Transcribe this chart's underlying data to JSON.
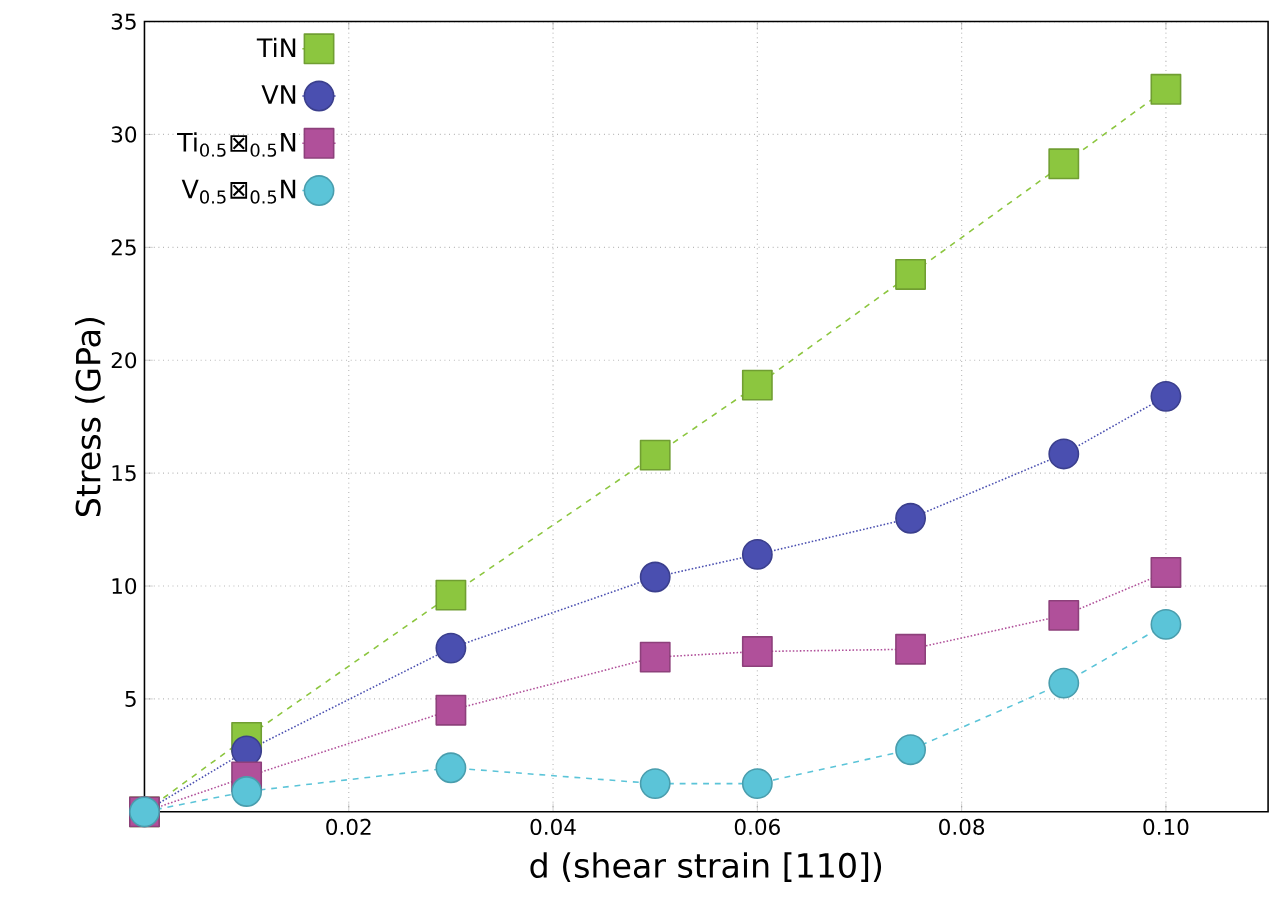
{
  "chart_data": {
    "type": "line",
    "xlabel": "d (shear strain [110])",
    "ylabel": "Stress (GPa)",
    "x": [
      0,
      0.01,
      0.03,
      0.05,
      0.06,
      0.075,
      0.09,
      0.1
    ],
    "series": [
      {
        "name": "TiN",
        "color": "#8cc63f",
        "marker": "square",
        "line_style": "dashed",
        "values": [
          0,
          3.3,
          9.6,
          15.8,
          18.9,
          23.8,
          28.7,
          32.0
        ]
      },
      {
        "name": "VN",
        "color": "#4a4fb0",
        "marker": "circle",
        "line_style": "dotted",
        "values": [
          0,
          2.7,
          7.25,
          10.4,
          11.4,
          13.0,
          15.85,
          18.4
        ]
      },
      {
        "name": "Ti$_{0.5}$⊠$_{0.5}$N",
        "color": "#b0509a",
        "marker": "square",
        "line_style": "dotted",
        "values": [
          0,
          1.55,
          4.5,
          6.85,
          7.1,
          7.2,
          8.7,
          10.6
        ]
      },
      {
        "name": "V$_{0.5}$⊠$_{0.5}$N",
        "color": "#5bc4d8",
        "marker": "circle",
        "line_style": "dashed",
        "values": [
          0,
          0.9,
          1.95,
          1.25,
          1.25,
          2.75,
          5.7,
          8.3
        ]
      }
    ],
    "xlim": [
      0,
      0.11
    ],
    "ylim": [
      0,
      35
    ],
    "xticks": [
      0.02,
      0.04,
      0.06,
      0.08,
      {
        "value": 0.1,
        "label": "0.10"
      }
    ],
    "yticks": [
      5,
      10,
      15,
      20,
      25,
      30,
      35
    ],
    "grid": true,
    "legend": "top left"
  }
}
